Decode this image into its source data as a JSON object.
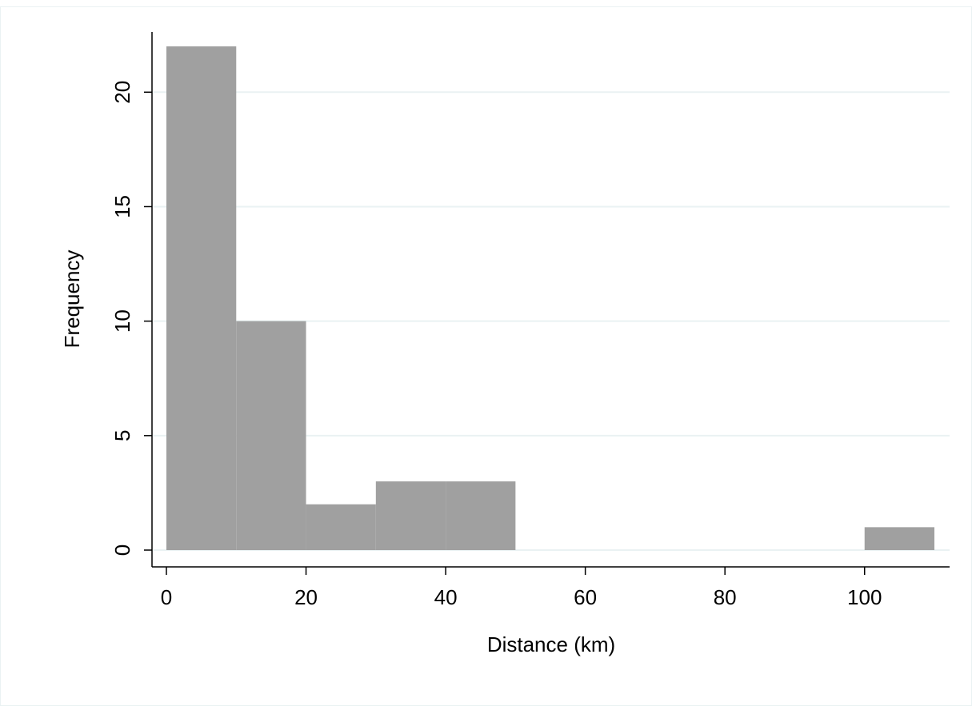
{
  "chart_data": {
    "type": "bar",
    "title": "",
    "xlabel": "Distance (km)",
    "ylabel": "Frequency",
    "bins": [
      {
        "x0": 0,
        "x1": 10,
        "value": 22
      },
      {
        "x0": 10,
        "x1": 20,
        "value": 10
      },
      {
        "x0": 20,
        "x1": 30,
        "value": 2
      },
      {
        "x0": 30,
        "x1": 40,
        "value": 3
      },
      {
        "x0": 40,
        "x1": 50,
        "value": 3
      },
      {
        "x0": 100,
        "x1": 110,
        "value": 1
      }
    ],
    "xticks": [
      0,
      20,
      40,
      60,
      80,
      100
    ],
    "yticks": [
      0,
      5,
      10,
      15,
      20
    ],
    "xlim": [
      0,
      110
    ],
    "ylim": [
      0,
      22
    ],
    "grid": true,
    "colors": {
      "bar": "#a0a0a0",
      "grid": "#eaf2f3",
      "axis": "#000000",
      "frame": "#eaf2f3"
    }
  }
}
